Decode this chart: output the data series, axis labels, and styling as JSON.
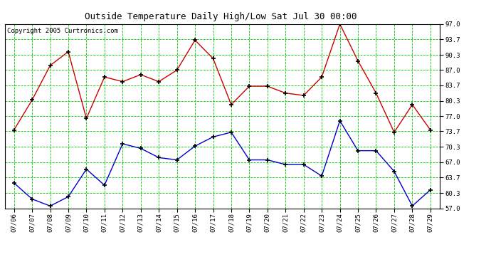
{
  "title": "Outside Temperature Daily High/Low Sat Jul 30 00:00",
  "copyright": "Copyright 2005 Curtronics.com",
  "x_labels": [
    "07/06",
    "07/07",
    "07/08",
    "07/09",
    "07/10",
    "07/11",
    "07/12",
    "07/13",
    "07/14",
    "07/15",
    "07/16",
    "07/17",
    "07/18",
    "07/19",
    "07/20",
    "07/21",
    "07/22",
    "07/23",
    "07/24",
    "07/25",
    "07/26",
    "07/27",
    "07/28",
    "07/29"
  ],
  "high_temps": [
    74.0,
    80.5,
    88.0,
    91.0,
    76.5,
    85.5,
    84.5,
    86.0,
    84.5,
    87.0,
    93.5,
    89.5,
    79.5,
    83.5,
    83.5,
    82.0,
    81.5,
    85.5,
    97.0,
    89.0,
    82.0,
    73.5,
    79.5,
    74.0
  ],
  "low_temps": [
    62.5,
    59.0,
    57.5,
    59.5,
    65.5,
    62.0,
    71.0,
    70.0,
    68.0,
    67.5,
    70.5,
    72.5,
    73.5,
    67.5,
    67.5,
    66.5,
    66.5,
    64.0,
    76.0,
    69.5,
    69.5,
    65.0,
    57.5,
    61.0
  ],
  "high_color": "#cc0000",
  "low_color": "#0000cc",
  "marker": "+",
  "marker_size": 5,
  "marker_edge_width": 1.2,
  "line_width": 1.0,
  "bg_color": "#ffffff",
  "grid_color": "#00cc00",
  "ymin": 57.0,
  "ymax": 97.0,
  "yticks": [
    57.0,
    60.3,
    63.7,
    67.0,
    70.3,
    73.7,
    77.0,
    80.3,
    83.7,
    87.0,
    90.3,
    93.7,
    97.0
  ],
  "title_fontsize": 9,
  "tick_fontsize": 6.5,
  "copyright_fontsize": 6.5
}
